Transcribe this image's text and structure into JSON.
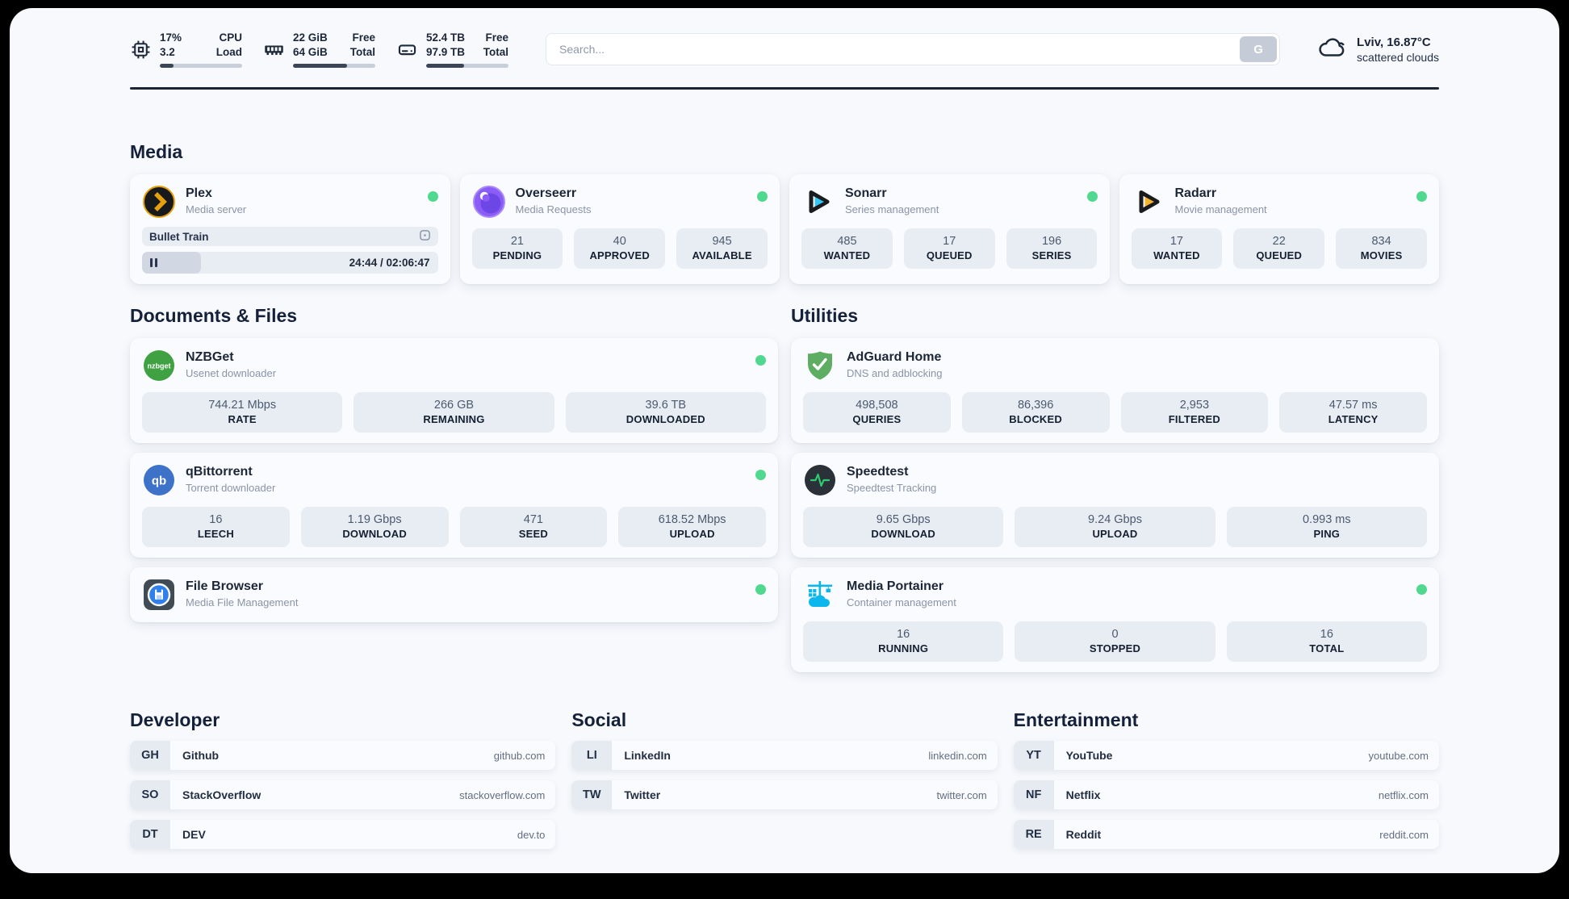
{
  "header": {
    "cpu": {
      "value": "17%",
      "value2": "3.2",
      "label": "CPU",
      "label2": "Load",
      "percent": 17
    },
    "ram": {
      "value": "22 GiB",
      "value2": "64 GiB",
      "label": "Free",
      "label2": "Total",
      "percent": 66
    },
    "disk": {
      "value": "52.4 TB",
      "value2": "97.9 TB",
      "label": "Free",
      "label2": "Total",
      "percent": 46
    },
    "search": {
      "placeholder": "Search...",
      "button": "G"
    },
    "weather": {
      "summary": "Lviv, 16.87°C",
      "condition": "scattered clouds"
    }
  },
  "media": {
    "title": "Media",
    "plex": {
      "name": "Plex",
      "desc": "Media server",
      "now_playing": "Bullet Train",
      "time": "24:44 / 02:06:47",
      "percent": 20
    },
    "overseerr": {
      "name": "Overseerr",
      "desc": "Media Requests",
      "stats": [
        {
          "value": "21",
          "label": "PENDING"
        },
        {
          "value": "40",
          "label": "APPROVED"
        },
        {
          "value": "945",
          "label": "AVAILABLE"
        }
      ]
    },
    "sonarr": {
      "name": "Sonarr",
      "desc": "Series management",
      "stats": [
        {
          "value": "485",
          "label": "WANTED"
        },
        {
          "value": "17",
          "label": "QUEUED"
        },
        {
          "value": "196",
          "label": "SERIES"
        }
      ]
    },
    "radarr": {
      "name": "Radarr",
      "desc": "Movie management",
      "stats": [
        {
          "value": "17",
          "label": "WANTED"
        },
        {
          "value": "22",
          "label": "QUEUED"
        },
        {
          "value": "834",
          "label": "MOVIES"
        }
      ]
    }
  },
  "documents": {
    "title": "Documents & Files",
    "nzbget": {
      "name": "NZBGet",
      "desc": "Usenet downloader",
      "icon_text": "nzbget",
      "stats": [
        {
          "value": "744.21 Mbps",
          "label": "RATE"
        },
        {
          "value": "266 GB",
          "label": "REMAINING"
        },
        {
          "value": "39.6 TB",
          "label": "DOWNLOADED"
        }
      ]
    },
    "qbittorrent": {
      "name": "qBittorrent",
      "desc": "Torrent downloader",
      "icon_text": "qb",
      "stats": [
        {
          "value": "16",
          "label": "LEECH"
        },
        {
          "value": "1.19 Gbps",
          "label": "DOWNLOAD"
        },
        {
          "value": "471",
          "label": "SEED"
        },
        {
          "value": "618.52 Mbps",
          "label": "UPLOAD"
        }
      ]
    },
    "filebrowser": {
      "name": "File Browser",
      "desc": "Media File Management"
    }
  },
  "utilities": {
    "title": "Utilities",
    "adguard": {
      "name": "AdGuard Home",
      "desc": "DNS and adblocking",
      "stats": [
        {
          "value": "498,508",
          "label": "QUERIES"
        },
        {
          "value": "86,396",
          "label": "BLOCKED"
        },
        {
          "value": "2,953",
          "label": "FILTERED"
        },
        {
          "value": "47.57 ms",
          "label": "LATENCY"
        }
      ]
    },
    "speedtest": {
      "name": "Speedtest",
      "desc": "Speedtest Tracking",
      "stats": [
        {
          "value": "9.65 Gbps",
          "label": "DOWNLOAD"
        },
        {
          "value": "9.24 Gbps",
          "label": "UPLOAD"
        },
        {
          "value": "0.993 ms",
          "label": "PING"
        }
      ]
    },
    "portainer": {
      "name": "Media Portainer",
      "desc": "Container management",
      "stats": [
        {
          "value": "16",
          "label": "RUNNING"
        },
        {
          "value": "0",
          "label": "STOPPED"
        },
        {
          "value": "16",
          "label": "TOTAL"
        }
      ]
    }
  },
  "links": {
    "developer": {
      "title": "Developer",
      "items": [
        {
          "abbr": "GH",
          "name": "Github",
          "url": "github.com"
        },
        {
          "abbr": "SO",
          "name": "StackOverflow",
          "url": "stackoverflow.com"
        },
        {
          "abbr": "DT",
          "name": "DEV",
          "url": "dev.to"
        }
      ]
    },
    "social": {
      "title": "Social",
      "items": [
        {
          "abbr": "LI",
          "name": "LinkedIn",
          "url": "linkedin.com"
        },
        {
          "abbr": "TW",
          "name": "Twitter",
          "url": "twitter.com"
        }
      ]
    },
    "entertainment": {
      "title": "Entertainment",
      "items": [
        {
          "abbr": "YT",
          "name": "YouTube",
          "url": "youtube.com"
        },
        {
          "abbr": "NF",
          "name": "Netflix",
          "url": "netflix.com"
        },
        {
          "abbr": "RE",
          "name": "Reddit",
          "url": "reddit.com"
        }
      ]
    }
  },
  "colors": {
    "green-dot": "#51d88f",
    "bar-fill": "#3a4557",
    "divider": "#1b2433",
    "search-btn-bg": "#c6ccd7",
    "plex-amber": "#e5a00d",
    "sonarr-cyan": "#35c5f4",
    "radarr-amber": "#f5b42c",
    "nzbget-green": "#3fa142",
    "qbittorrent-blue": "#3d72c8",
    "adguard-green": "#5dae63",
    "speedtest-pulse": "#2ecc71",
    "portainer-blue": "#0db7ed"
  }
}
